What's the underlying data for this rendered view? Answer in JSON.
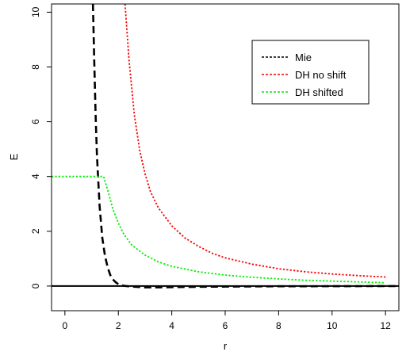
{
  "chart_data": {
    "type": "line",
    "xlabel": "r",
    "ylabel": "E",
    "xlim": [
      -0.5,
      12.5
    ],
    "ylim": [
      -0.9,
      10.3
    ],
    "x_ticks": [
      0,
      2,
      4,
      6,
      8,
      10,
      12
    ],
    "y_ticks": [
      0,
      2,
      4,
      6,
      8,
      10
    ],
    "x_tick_labels": [
      "0",
      "2",
      "4",
      "6",
      "8",
      "10",
      "12"
    ],
    "y_tick_labels": [
      "0",
      "2",
      "4",
      "6",
      "8",
      "10"
    ],
    "reference_line": {
      "y": 0,
      "color": "#000000"
    },
    "legend": {
      "position": "top-right"
    },
    "series": [
      {
        "name": "Mie",
        "color": "#000000",
        "dash": "long-dash",
        "points": [
          [
            1.05,
            10.3
          ],
          [
            1.1,
            8.16
          ],
          [
            1.15,
            6.22
          ],
          [
            1.2,
            4.74
          ],
          [
            1.3,
            2.92
          ],
          [
            1.4,
            1.76
          ],
          [
            1.5,
            1.1
          ],
          [
            1.6,
            0.68
          ],
          [
            1.7,
            0.4
          ],
          [
            1.8,
            0.24
          ],
          [
            1.9,
            0.14
          ],
          [
            2.0,
            0.07
          ],
          [
            2.2,
            0.01
          ],
          [
            2.5,
            -0.02
          ],
          [
            3.0,
            -0.05
          ],
          [
            3.5,
            -0.05
          ],
          [
            4.0,
            -0.04
          ],
          [
            5.0,
            -0.03
          ],
          [
            6.0,
            -0.02
          ],
          [
            8.0,
            -0.01
          ],
          [
            10.0,
            -0.005
          ],
          [
            12.5,
            0.0
          ]
        ]
      },
      {
        "name": "DH no shift",
        "color": "#ff0000",
        "dash": "dotted",
        "points": [
          [
            2.25,
            10.3
          ],
          [
            2.4,
            8.25
          ],
          [
            2.6,
            6.25
          ],
          [
            2.8,
            4.95
          ],
          [
            3.0,
            4.1
          ],
          [
            3.2,
            3.45
          ],
          [
            3.5,
            2.85
          ],
          [
            4.0,
            2.2
          ],
          [
            4.5,
            1.75
          ],
          [
            5.0,
            1.45
          ],
          [
            5.5,
            1.2
          ],
          [
            6.0,
            1.03
          ],
          [
            7.0,
            0.8
          ],
          [
            8.0,
            0.63
          ],
          [
            9.0,
            0.52
          ],
          [
            10.0,
            0.44
          ],
          [
            11.0,
            0.38
          ],
          [
            12.0,
            0.33
          ]
        ]
      },
      {
        "name": "DH shifted",
        "color": "#00ee00",
        "dash": "dotted",
        "points": [
          [
            -0.5,
            4.0
          ],
          [
            1.45,
            4.0
          ],
          [
            1.6,
            3.5
          ],
          [
            1.8,
            2.8
          ],
          [
            2.0,
            2.3
          ],
          [
            2.2,
            1.9
          ],
          [
            2.5,
            1.5
          ],
          [
            3.0,
            1.13
          ],
          [
            3.5,
            0.88
          ],
          [
            4.0,
            0.72
          ],
          [
            5.0,
            0.52
          ],
          [
            6.0,
            0.4
          ],
          [
            7.0,
            0.32
          ],
          [
            8.0,
            0.26
          ],
          [
            9.0,
            0.21
          ],
          [
            10.0,
            0.18
          ],
          [
            11.0,
            0.15
          ],
          [
            12.0,
            0.12
          ]
        ]
      }
    ]
  }
}
